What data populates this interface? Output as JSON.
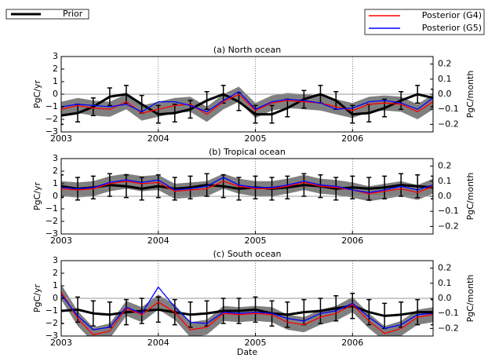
{
  "chart_data": [
    {
      "type": "line",
      "title": "(a) North ocean",
      "ylabel": "PgC/yr",
      "y2label": "PgC/month",
      "x": [
        2003,
        2003.17,
        2003.33,
        2003.5,
        2003.67,
        2003.83,
        2004,
        2004.17,
        2004.33,
        2004.5,
        2004.67,
        2004.83,
        2005,
        2005.17,
        2005.33,
        2005.5,
        2005.67,
        2005.83,
        2006,
        2006.17,
        2006.33,
        2006.5,
        2006.67,
        2006.83
      ],
      "xlim": [
        2003,
        2006.83
      ],
      "xticks": [
        2003,
        2004,
        2005,
        2006
      ],
      "ylim": [
        -3,
        3
      ],
      "yticks": [
        {
          "value": -3,
          "label": "−3"
        },
        {
          "value": -2,
          "label": "−2"
        },
        {
          "value": -1,
          "label": "−1"
        },
        0,
        1,
        2,
        3
      ],
      "y2lim": [
        -0.25,
        0.25
      ],
      "y2ticks": [
        {
          "value": -0.2,
          "label": "−0.2"
        },
        {
          "value": -0.1,
          "label": "−0.1"
        },
        {
          "value": 0,
          "label": "0.0"
        },
        0.1,
        0.2
      ],
      "grid": true,
      "band": {
        "color": "#808080",
        "low": [
          -1.8,
          -1.5,
          -1.7,
          -1.8,
          -1.2,
          -2.1,
          -1.8,
          -1.5,
          -1.4,
          -2.2,
          -1.2,
          -0.6,
          -1.9,
          -1.3,
          -1.1,
          -1.2,
          -1.3,
          -1.6,
          -1.9,
          -1.4,
          -1.3,
          -1.4,
          -2.0,
          -1.2
        ],
        "high": [
          -0.6,
          -0.3,
          -0.5,
          -0.6,
          0,
          -0.9,
          -0.6,
          -0.3,
          -0.2,
          -1.0,
          0,
          0.6,
          -0.7,
          -0.1,
          0.1,
          0,
          -0.1,
          -0.4,
          -0.7,
          -0.2,
          -0.1,
          -0.2,
          -0.8,
          0
        ]
      },
      "series": [
        {
          "name": "Prior",
          "color": "#000000",
          "error": 0.7,
          "values": [
            -1.7,
            -1.5,
            -1,
            -0.2,
            0,
            -0.8,
            -1.6,
            -1.5,
            -1.2,
            -0.5,
            0,
            -0.6,
            -1.6,
            -1.6,
            -1.1,
            -0.4,
            0,
            -0.5,
            -1.6,
            -1.5,
            -1.1,
            -0.5,
            0,
            -0.3
          ]
        },
        {
          "name": "Posterior (G4)",
          "color": "#ff0000",
          "values": [
            -1.2,
            -0.9,
            -1.1,
            -1.2,
            -0.6,
            -1.5,
            -1.2,
            -0.9,
            -0.8,
            -1.6,
            -0.6,
            0,
            -1.3,
            -0.7,
            -0.5,
            -0.6,
            -0.7,
            -1,
            -1.3,
            -0.8,
            -0.7,
            -0.8,
            -1.4,
            -0.6
          ]
        },
        {
          "name": "Posterior (G5)",
          "color": "#0000ff",
          "values": [
            -1.0,
            -0.8,
            -0.9,
            -1.0,
            -0.8,
            -1.4,
            -0.6,
            -0.6,
            -0.9,
            -1.4,
            -0.5,
            0.2,
            -1.2,
            -0.6,
            -0.4,
            -0.5,
            -0.7,
            -1.2,
            -1.1,
            -0.6,
            -0.5,
            -0.7,
            -1.2,
            -0.3
          ]
        }
      ]
    },
    {
      "type": "line",
      "title": "(b) Tropical ocean",
      "ylabel": "PgC/yr",
      "y2label": "PgC/month",
      "x": [
        2003,
        2003.17,
        2003.33,
        2003.5,
        2003.67,
        2003.83,
        2004,
        2004.17,
        2004.33,
        2004.5,
        2004.67,
        2004.83,
        2005,
        2005.17,
        2005.33,
        2005.5,
        2005.67,
        2005.83,
        2006,
        2006.17,
        2006.33,
        2006.5,
        2006.67,
        2006.83
      ],
      "xlim": [
        2003,
        2006.83
      ],
      "xticks": [
        2003,
        2004,
        2005,
        2006
      ],
      "ylim": [
        -3,
        3
      ],
      "yticks": [
        {
          "value": -3,
          "label": "−3"
        },
        {
          "value": -2,
          "label": "−2"
        },
        {
          "value": -1,
          "label": "−1"
        },
        0,
        1,
        2,
        3
      ],
      "y2lim": [
        -0.25,
        0.25
      ],
      "y2ticks": [
        {
          "value": -0.2,
          "label": "−0.2"
        },
        {
          "value": -0.1,
          "label": "−0.1"
        },
        {
          "value": 0,
          "label": "0.0"
        },
        0.1,
        0.2
      ],
      "grid": true,
      "band": {
        "color": "#808080",
        "low": [
          0,
          -0.1,
          0,
          0.4,
          0.6,
          0.4,
          0.5,
          -0.2,
          -0.1,
          0,
          0.6,
          0.2,
          0,
          0,
          0.2,
          0.5,
          0.2,
          0.1,
          -0.1,
          -0.4,
          -0.2,
          0,
          -0.3,
          0.2
        ],
        "high": [
          1.2,
          1.1,
          1.2,
          1.6,
          1.8,
          1.6,
          1.7,
          1.0,
          1.1,
          1.2,
          1.8,
          1.4,
          1.2,
          1.2,
          1.4,
          1.7,
          1.4,
          1.3,
          1.1,
          0.8,
          1.0,
          1.2,
          0.9,
          1.4
        ]
      },
      "series": [
        {
          "color": "#000000",
          "error": 0.9,
          "values": [
            0.8,
            0.6,
            0.7,
            0.9,
            0.8,
            0.6,
            0.8,
            0.6,
            0.7,
            0.9,
            0.8,
            0.6,
            0.7,
            0.6,
            0.7,
            0.9,
            0.8,
            0.6,
            0.7,
            0.6,
            0.7,
            0.9,
            0.8,
            0.7
          ]
        },
        {
          "color": "#ff0000",
          "values": [
            0.6,
            0.5,
            0.6,
            1.0,
            1.2,
            1.0,
            1.1,
            0.4,
            0.5,
            0.6,
            1.2,
            0.8,
            0.6,
            0.6,
            0.8,
            1.1,
            0.8,
            0.7,
            0.5,
            0.2,
            0.4,
            0.6,
            0.3,
            0.8
          ]
        },
        {
          "color": "#0000ff",
          "values": [
            0.7,
            0.6,
            0.7,
            1.1,
            1.3,
            1.1,
            1.3,
            0.5,
            0.6,
            0.8,
            1.5,
            0.9,
            0.7,
            0.7,
            0.9,
            1.2,
            0.9,
            0.8,
            0.5,
            0.3,
            0.5,
            0.8,
            0.5,
            0.9
          ]
        }
      ]
    },
    {
      "type": "line",
      "title": "(c) South ocean",
      "ylabel": "PgC/yr",
      "y2label": "PgC/month",
      "xlabel": "Date",
      "x": [
        2003,
        2003.17,
        2003.33,
        2003.5,
        2003.67,
        2003.83,
        2004,
        2004.17,
        2004.33,
        2004.5,
        2004.67,
        2004.83,
        2005,
        2005.17,
        2005.33,
        2005.5,
        2005.67,
        2005.83,
        2006,
        2006.17,
        2006.33,
        2006.5,
        2006.67,
        2006.83
      ],
      "xlim": [
        2003,
        2006.83
      ],
      "xticks": [
        2003,
        2004,
        2005,
        2006
      ],
      "ylim": [
        -3,
        3
      ],
      "yticks": [
        {
          "value": -3,
          "label": "−3"
        },
        {
          "value": -2,
          "label": "−2"
        },
        {
          "value": -1,
          "label": "−1"
        },
        0,
        1,
        2,
        3
      ],
      "y2lim": [
        -0.25,
        0.25
      ],
      "y2ticks": [
        {
          "value": -0.2,
          "label": "−0.2"
        },
        {
          "value": -0.1,
          "label": "−0.1"
        },
        {
          "value": 0,
          "label": "0.0"
        },
        0.1,
        0.2
      ],
      "grid": true,
      "band": {
        "color": "#808080",
        "low": [
          -0.1,
          -2.2,
          -3.5,
          -3.2,
          -1.4,
          -1.9,
          -0.9,
          -1.7,
          -3.1,
          -2.9,
          -1.8,
          -1.9,
          -1.8,
          -1.9,
          -2.5,
          -2.7,
          -2.1,
          -1.8,
          -1.1,
          -2.4,
          -3.4,
          -3.0,
          -2.1,
          -1.9
        ],
        "high": [
          1.1,
          -1.0,
          -2.3,
          -2.0,
          -0.2,
          -0.7,
          0.3,
          -0.5,
          -1.9,
          -1.7,
          -0.6,
          -0.7,
          -0.6,
          -0.7,
          -1.3,
          -1.5,
          -0.9,
          -0.6,
          0.1,
          -1.2,
          -2.2,
          -1.8,
          -0.9,
          -0.7
        ]
      },
      "series": [
        {
          "color": "#000000",
          "error": 1.0,
          "values": [
            -1.0,
            -0.9,
            -1.2,
            -1.3,
            -1.1,
            -1.0,
            -0.9,
            -1.1,
            -1.3,
            -1.2,
            -1.0,
            -1.0,
            -0.9,
            -1.2,
            -1.3,
            -1.1,
            -1.0,
            -0.8,
            -0.6,
            -1.1,
            -1.4,
            -1.3,
            -1.1,
            -1.1
          ]
        },
        {
          "color": "#ff0000",
          "values": [
            0.5,
            -1.6,
            -2.9,
            -2.6,
            -0.8,
            -1.3,
            -0.3,
            -1.1,
            -2.5,
            -2.3,
            -1.2,
            -1.3,
            -1.2,
            -1.3,
            -1.9,
            -2.1,
            -1.5,
            -1.2,
            -0.5,
            -1.8,
            -2.8,
            -2.4,
            -1.5,
            -1.3
          ]
        },
        {
          "color": "#0000ff",
          "values": [
            0.3,
            -1.4,
            -2.5,
            -2.3,
            -0.7,
            -1.2,
            0.9,
            -0.7,
            -1.9,
            -2.0,
            -1.1,
            -1.2,
            -1.1,
            -1.2,
            -1.6,
            -1.8,
            -1.2,
            -1.0,
            -0.4,
            -1.5,
            -2.4,
            -2.1,
            -1.3,
            -1.2
          ]
        }
      ]
    }
  ]
}
